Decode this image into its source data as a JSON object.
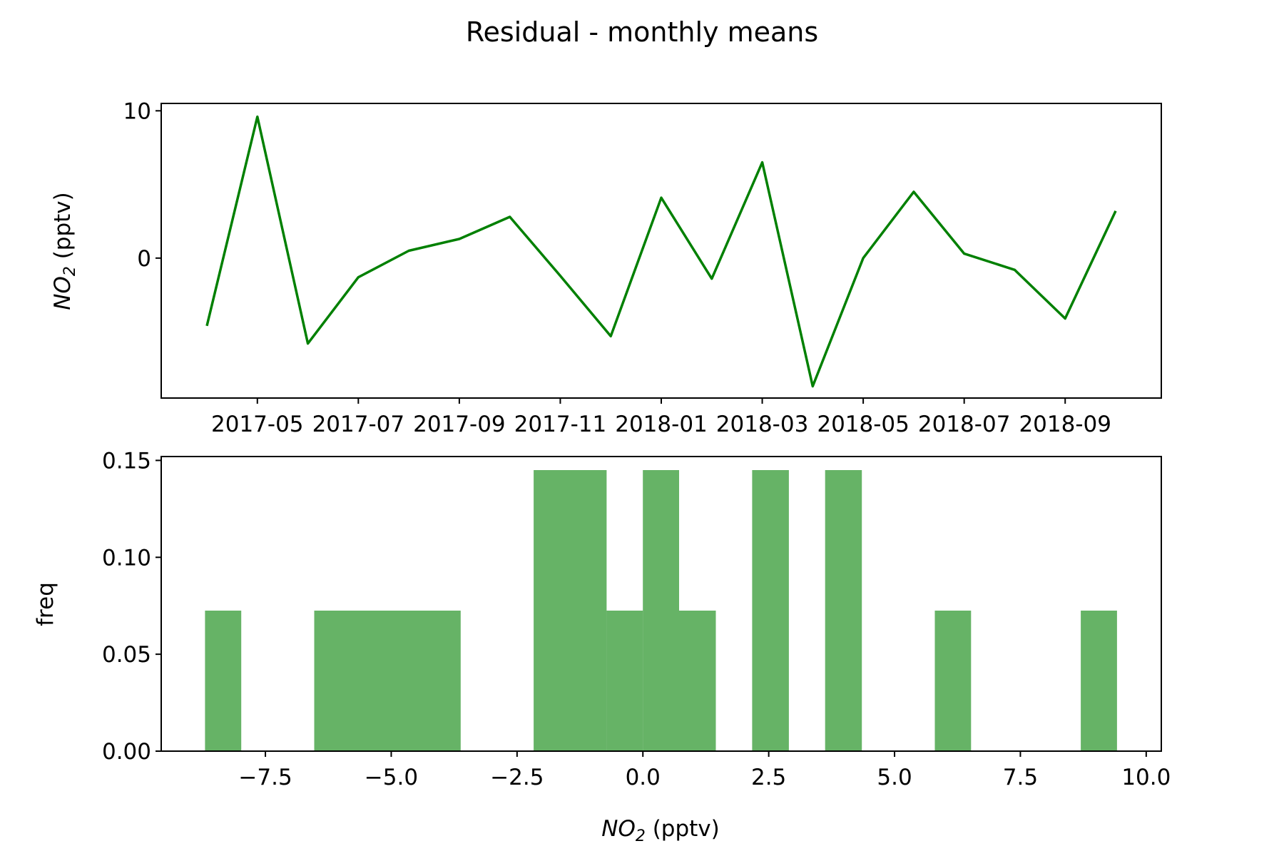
{
  "chart_data": [
    {
      "type": "line",
      "title": "Residual - monthly means",
      "xlabel": "",
      "ylabel": {
        "main": "NO",
        "sub": "2",
        "unit": " (pptv)"
      },
      "series": [
        {
          "color": "#008000",
          "x": [
            "2017-04",
            "2017-05",
            "2017-06",
            "2017-07",
            "2017-08",
            "2017-09",
            "2017-10",
            "2017-11",
            "2017-12",
            "2018-01",
            "2018-02",
            "2018-03",
            "2018-04",
            "2018-05",
            "2018-06",
            "2018-07",
            "2018-08",
            "2018-09",
            "2018-10"
          ],
          "values": [
            -4.6,
            9.6,
            -5.8,
            -1.3,
            0.5,
            1.3,
            2.8,
            -1.2,
            -5.3,
            4.1,
            -1.4,
            6.5,
            -8.7,
            0.0,
            4.5,
            0.3,
            -0.8,
            -4.1,
            3.2
          ]
        }
      ],
      "xticks": [
        "2017-05",
        "2017-07",
        "2017-09",
        "2017-11",
        "2018-01",
        "2018-03",
        "2018-05",
        "2018-07",
        "2018-09"
      ],
      "yticks": [
        0,
        10
      ],
      "ylim": [
        -9.5,
        10.5
      ]
    },
    {
      "type": "bar",
      "title": "",
      "xlabel": {
        "main": "NO",
        "sub": "2",
        "unit": " (pptv)"
      },
      "ylabel": "freq",
      "color": "#008000",
      "opacity": 0.6,
      "bins": [
        {
          "start": -8.7,
          "end": -7.98,
          "value": 0.0725
        },
        {
          "start": -6.53,
          "end": -3.62,
          "value": 0.0725
        },
        {
          "start": -2.17,
          "end": -0.72,
          "value": 0.145
        },
        {
          "start": -0.72,
          "end": 0.0,
          "value": 0.0725
        },
        {
          "start": 0.0,
          "end": 0.72,
          "value": 0.145
        },
        {
          "start": 0.72,
          "end": 1.45,
          "value": 0.0725
        },
        {
          "start": 2.17,
          "end": 2.9,
          "value": 0.145
        },
        {
          "start": 3.62,
          "end": 4.35,
          "value": 0.145
        },
        {
          "start": 5.8,
          "end": 6.52,
          "value": 0.0725
        },
        {
          "start": 8.7,
          "end": 9.42,
          "value": 0.0725
        }
      ],
      "xticks": [
        "−7.5",
        "−5.0",
        "−2.5",
        "0.0",
        "2.5",
        "5.0",
        "7.5",
        "10.0"
      ],
      "xtick_values": [
        -7.5,
        -5.0,
        -2.5,
        0.0,
        2.5,
        5.0,
        7.5,
        10.0
      ],
      "yticks": [
        "0.00",
        "0.05",
        "0.10",
        "0.15"
      ],
      "ytick_values": [
        0.0,
        0.05,
        0.1,
        0.15
      ],
      "xlim": [
        -9.57,
        10.3
      ],
      "ylim": [
        0,
        0.152
      ]
    }
  ]
}
